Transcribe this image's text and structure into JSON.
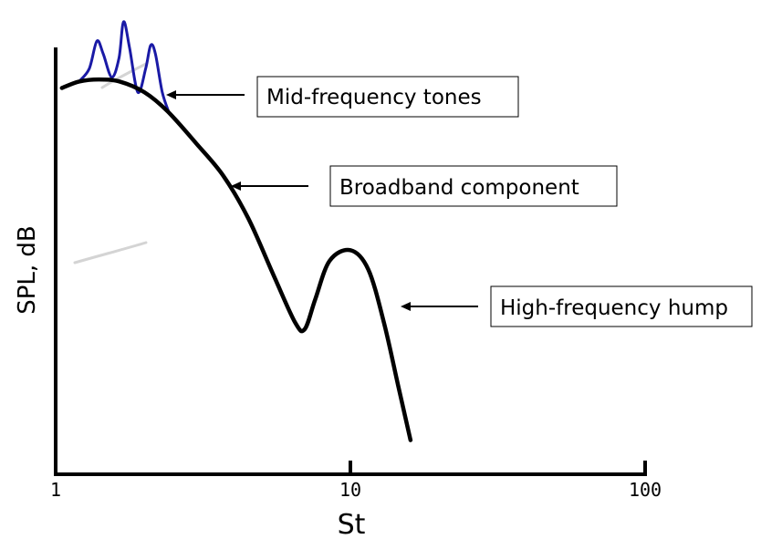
{
  "chart_data": {
    "type": "line",
    "xlabel": "St",
    "ylabel": "SPL, dB",
    "x_scale": "log",
    "x_ticks": [
      {
        "value": 1,
        "label": "1"
      },
      {
        "value": 10,
        "label": "10"
      },
      {
        "value": 100,
        "label": "100"
      }
    ],
    "xlim": [
      1,
      100
    ],
    "y_ticks_shown": false,
    "grid": false,
    "legend": "none",
    "series": [
      {
        "color": "#000000",
        "x": [
          1.05,
          1.2,
          1.4,
          1.65,
          2.0,
          2.4,
          3.0,
          3.7,
          4.5,
          5.5,
          6.5,
          7.0,
          7.6,
          8.5,
          10.0,
          11.5,
          13.0,
          14.5,
          16.0
        ],
        "y": [
          0.905,
          0.92,
          0.925,
          0.92,
          0.895,
          0.85,
          0.775,
          0.7,
          0.6,
          0.465,
          0.355,
          0.34,
          0.41,
          0.5,
          0.525,
          0.48,
          0.355,
          0.21,
          0.08
        ]
      },
      {
        "color": "#1a1aa6",
        "x": [
          1.2,
          1.3,
          1.38,
          1.45,
          1.55,
          1.64,
          1.7,
          1.78,
          1.9,
          2.02,
          2.1,
          2.18,
          2.3,
          2.43
        ],
        "y": [
          0.92,
          0.95,
          1.015,
          0.985,
          0.93,
          0.975,
          1.06,
          1.0,
          0.895,
          0.95,
          1.005,
          0.985,
          0.895,
          0.845
        ]
      }
    ],
    "annotations": [
      {
        "text": "Mid-frequency tones",
        "points_to_x": 2.3
      },
      {
        "text": "Broadband component",
        "points_to_x": 3.7
      },
      {
        "text": "High-frequency hump",
        "points_to_x": 13.0
      }
    ]
  }
}
